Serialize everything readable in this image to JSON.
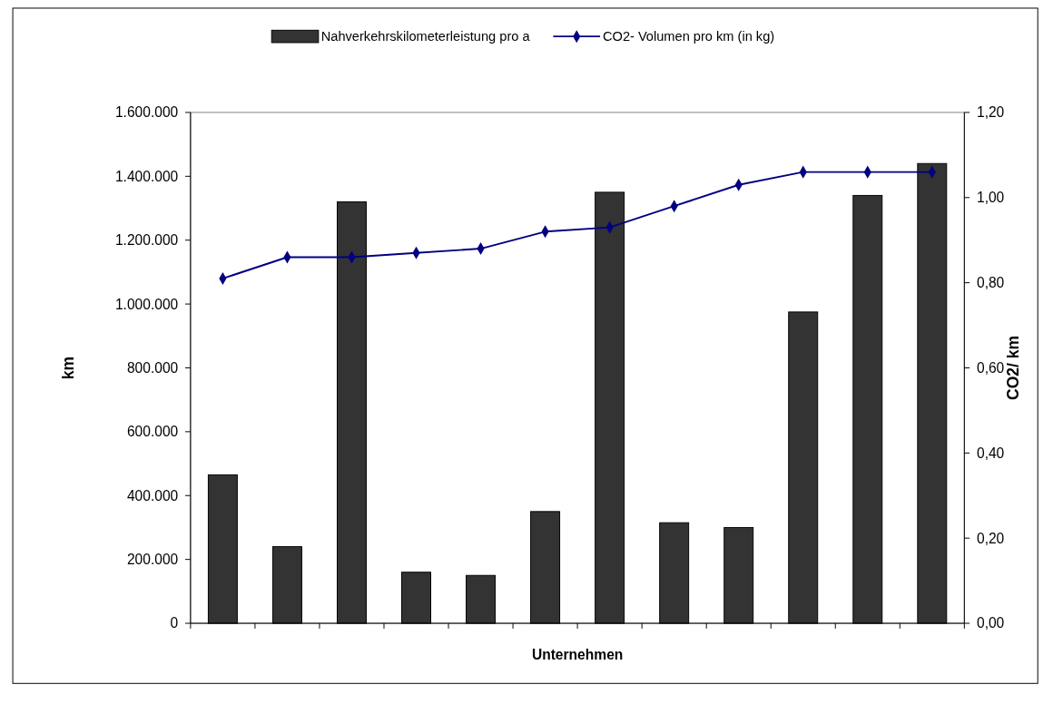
{
  "chart_data": {
    "type": "bar",
    "xlabel": "Unternehmen",
    "ylabel": "km",
    "y2label": "CO2/ km",
    "categories": [
      null,
      null,
      null,
      null,
      null,
      null,
      null,
      null,
      null,
      null,
      null,
      null
    ],
    "series": [
      {
        "name": "Nahverkehrskilometerleistung pro a",
        "color": "#333333",
        "values": [
          465000,
          240000,
          1320000,
          160000,
          150000,
          350000,
          1350000,
          315000,
          300000,
          975000,
          1340000,
          1440000
        ]
      },
      {
        "name": "CO2- Volumen pro km (in kg)",
        "type": "line",
        "axis": "y2",
        "color": "#000080",
        "marker": "diamond",
        "values": [
          0.81,
          0.86,
          0.86,
          0.87,
          0.88,
          0.92,
          0.93,
          0.98,
          1.03,
          1.06,
          1.06,
          1.06
        ]
      }
    ],
    "ylim": [
      0,
      1600000
    ],
    "yticks": [
      {
        "value": 0,
        "label": "0"
      },
      {
        "value": 200000,
        "label": "200.000"
      },
      {
        "value": 400000,
        "label": "400.000"
      },
      {
        "value": 600000,
        "label": "600.000"
      },
      {
        "value": 800000,
        "label": "800.000"
      },
      {
        "value": 1000000,
        "label": "1.000.000"
      },
      {
        "value": 1200000,
        "label": "1.200.000"
      },
      {
        "value": 1400000,
        "label": "1.400.000"
      },
      {
        "value": 1600000,
        "label": "1.600.000"
      }
    ],
    "y2lim": [
      0,
      1.2
    ],
    "y2ticks": [
      {
        "value": 0,
        "label": "0,00"
      },
      {
        "value": 0.2,
        "label": "0,20"
      },
      {
        "value": 0.4,
        "label": "0,40"
      },
      {
        "value": 0.6,
        "label": "0,60"
      },
      {
        "value": 0.8,
        "label": "0,80"
      },
      {
        "value": 1,
        "label": "1,00"
      },
      {
        "value": 1.2,
        "label": "1,20"
      }
    ],
    "legend": "top",
    "grid": false
  }
}
